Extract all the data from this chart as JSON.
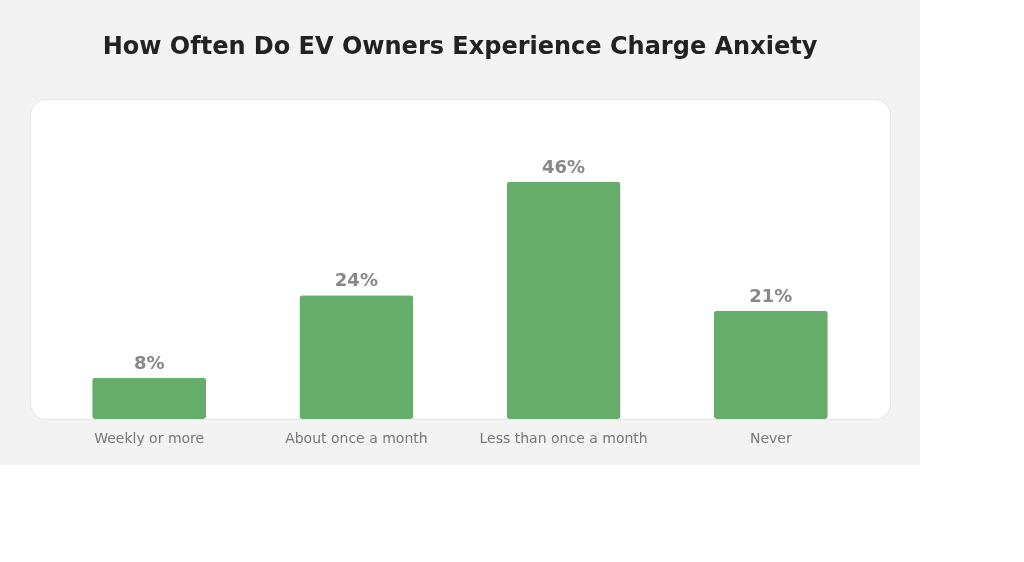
{
  "chart_data": {
    "type": "bar",
    "title": "How Often Do EV Owners Experience Charge Anxiety",
    "categories": [
      "Weekly or more",
      "About once a month",
      "Less than once a month",
      "Never"
    ],
    "values": [
      8,
      24,
      46,
      21
    ],
    "value_labels": [
      "8%",
      "24%",
      "46%",
      "21%"
    ],
    "color": "#66ac6a"
  }
}
